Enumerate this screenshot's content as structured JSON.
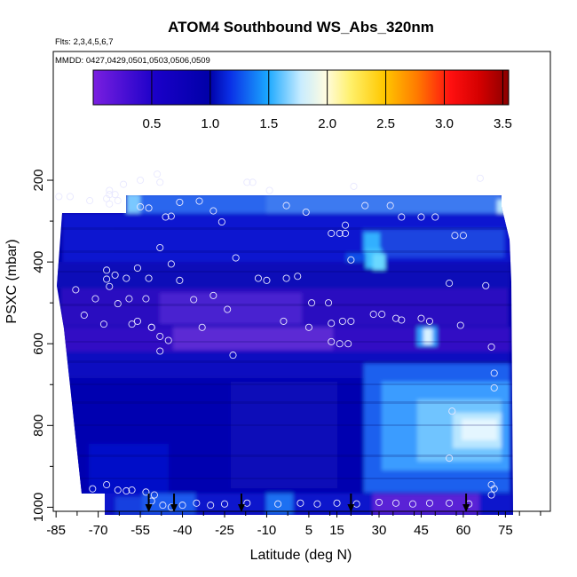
{
  "chart_data": {
    "type": "heatmap",
    "title": "ATOM4 Southbound WS_Abs_320nm",
    "flights_note": "Flts: 2,3,4,5,6,7",
    "dates_note": "MMDD: 0427,0429,0501,0503,0506,0509",
    "xlabel": "Latitude (deg N)",
    "ylabel": "PSXC (mbar)",
    "x_ticks": [
      -85,
      -70,
      -55,
      -40,
      -25,
      -10,
      5,
      15,
      30,
      45,
      60,
      75
    ],
    "x_tick_labels": [
      "-85",
      "-70",
      "-55",
      "-40",
      "-25",
      "-10",
      "5",
      "15",
      "30",
      "45",
      "60",
      "75"
    ],
    "y_ticks": [
      200,
      400,
      600,
      800,
      1000
    ],
    "y_tick_labels": [
      "200",
      "400",
      "600",
      "800",
      "1000"
    ],
    "xlim": [
      -86,
      91
    ],
    "ylim": [
      1010,
      -115
    ],
    "colorbar": {
      "range": [
        0,
        3.55
      ],
      "ticks": [
        0.5,
        1.0,
        1.5,
        2.0,
        2.5,
        3.0,
        3.5
      ],
      "tick_labels": [
        "0.5",
        "1.0",
        "1.5",
        "2.0",
        "2.5",
        "3.0",
        "3.5"
      ],
      "colors": [
        [
          0.0,
          "#7a1fe0"
        ],
        [
          0.15,
          "#1a00c8"
        ],
        [
          0.28,
          "#0000a8"
        ],
        [
          0.33,
          "#0a30e6"
        ],
        [
          0.42,
          "#1aa8ff"
        ],
        [
          0.5,
          "#c8ecff"
        ],
        [
          0.56,
          "#fffce0"
        ],
        [
          0.62,
          "#fff06a"
        ],
        [
          0.7,
          "#ffc800"
        ],
        [
          0.78,
          "#ff7a00"
        ],
        [
          0.86,
          "#ff1010"
        ],
        [
          0.93,
          "#d40000"
        ],
        [
          1.0,
          "#8a0000"
        ]
      ]
    },
    "profile_arrows_lat": [
      -52,
      -43,
      -19,
      20,
      61
    ],
    "observations": [
      {
        "lat": -84,
        "p": 240
      },
      {
        "lat": -80,
        "p": 240
      },
      {
        "lat": -73,
        "p": 250
      },
      {
        "lat": -67,
        "p": 245
      },
      {
        "lat": -66,
        "p": 225
      },
      {
        "lat": -66,
        "p": 235
      },
      {
        "lat": -66,
        "p": 258
      },
      {
        "lat": -64,
        "p": 235
      },
      {
        "lat": -63,
        "p": 250
      },
      {
        "lat": -61,
        "p": 210
      },
      {
        "lat": -55,
        "p": 200
      },
      {
        "lat": -55,
        "p": 265
      },
      {
        "lat": -52,
        "p": 268
      },
      {
        "lat": -48,
        "p": 205
      },
      {
        "lat": -49,
        "p": 185
      },
      {
        "lat": -44,
        "p": 288
      },
      {
        "lat": -46,
        "p": 290
      },
      {
        "lat": -41,
        "p": 254
      },
      {
        "lat": -34,
        "p": 251
      },
      {
        "lat": -29,
        "p": 275
      },
      {
        "lat": -26,
        "p": 302
      },
      {
        "lat": -17,
        "p": 205
      },
      {
        "lat": -15,
        "p": 205
      },
      {
        "lat": -9,
        "p": 225
      },
      {
        "lat": -3,
        "p": 262
      },
      {
        "lat": 4,
        "p": 278
      },
      {
        "lat": 13,
        "p": 330
      },
      {
        "lat": 16,
        "p": 330
      },
      {
        "lat": 18,
        "p": 330
      },
      {
        "lat": 18,
        "p": 310
      },
      {
        "lat": 21,
        "p": 215
      },
      {
        "lat": 25,
        "p": 262
      },
      {
        "lat": 34,
        "p": 262
      },
      {
        "lat": 38,
        "p": 290
      },
      {
        "lat": 45,
        "p": 290
      },
      {
        "lat": 50,
        "p": 290
      },
      {
        "lat": 57,
        "p": 335
      },
      {
        "lat": 60,
        "p": 335
      },
      {
        "lat": 66,
        "p": 195
      },
      {
        "lat": -67,
        "p": 420
      },
      {
        "lat": -67,
        "p": 442
      },
      {
        "lat": -66,
        "p": 460
      },
      {
        "lat": -64,
        "p": 432
      },
      {
        "lat": -60,
        "p": 440
      },
      {
        "lat": -56,
        "p": 415
      },
      {
        "lat": -52,
        "p": 440
      },
      {
        "lat": -53,
        "p": 490
      },
      {
        "lat": -51,
        "p": 560
      },
      {
        "lat": -56,
        "p": 545
      },
      {
        "lat": -48,
        "p": 582
      },
      {
        "lat": -48,
        "p": 365
      },
      {
        "lat": -44,
        "p": 405
      },
      {
        "lat": -41,
        "p": 445
      },
      {
        "lat": -36,
        "p": 492
      },
      {
        "lat": -33,
        "p": 560
      },
      {
        "lat": -29,
        "p": 482
      },
      {
        "lat": -24,
        "p": 516
      },
      {
        "lat": -21,
        "p": 390
      },
      {
        "lat": -13,
        "p": 440
      },
      {
        "lat": -10,
        "p": 445
      },
      {
        "lat": -3,
        "p": 440
      },
      {
        "lat": 1,
        "p": 435
      },
      {
        "lat": 6,
        "p": 500
      },
      {
        "lat": 12,
        "p": 500
      },
      {
        "lat": 20,
        "p": 395
      },
      {
        "lat": -78,
        "p": 468
      },
      {
        "lat": -75,
        "p": 530
      },
      {
        "lat": -71,
        "p": 490
      },
      {
        "lat": -68,
        "p": 552
      },
      {
        "lat": -63,
        "p": 502
      },
      {
        "lat": -59,
        "p": 490
      },
      {
        "lat": -58,
        "p": 552
      },
      {
        "lat": -51,
        "p": 560
      },
      {
        "lat": -45,
        "p": 592
      },
      {
        "lat": -48,
        "p": 618
      },
      {
        "lat": -4,
        "p": 545
      },
      {
        "lat": 5,
        "p": 560
      },
      {
        "lat": 13,
        "p": 550
      },
      {
        "lat": 17,
        "p": 545
      },
      {
        "lat": 20,
        "p": 545
      },
      {
        "lat": 16,
        "p": 600
      },
      {
        "lat": 19,
        "p": 600
      },
      {
        "lat": 13,
        "p": 595
      },
      {
        "lat": 28,
        "p": 528
      },
      {
        "lat": 31,
        "p": 528
      },
      {
        "lat": 36,
        "p": 538
      },
      {
        "lat": 38,
        "p": 542
      },
      {
        "lat": 45,
        "p": 538
      },
      {
        "lat": 48,
        "p": 545
      },
      {
        "lat": 55,
        "p": 452
      },
      {
        "lat": 59,
        "p": 555
      },
      {
        "lat": 68,
        "p": 458
      },
      {
        "lat": 70,
        "p": 608
      },
      {
        "lat": 71,
        "p": 672
      },
      {
        "lat": 71,
        "p": 708
      },
      {
        "lat": -22,
        "p": 628
      },
      {
        "lat": 56,
        "p": 765
      },
      {
        "lat": 55,
        "p": 880
      },
      {
        "lat": 70,
        "p": 945
      },
      {
        "lat": 71,
        "p": 955
      },
      {
        "lat": 70,
        "p": 970
      },
      {
        "lat": -72,
        "p": 955
      },
      {
        "lat": -67,
        "p": 945
      },
      {
        "lat": -63,
        "p": 958
      },
      {
        "lat": -60,
        "p": 960
      },
      {
        "lat": -58,
        "p": 958
      },
      {
        "lat": -53,
        "p": 963
      },
      {
        "lat": -50,
        "p": 970
      },
      {
        "lat": -51,
        "p": 985
      },
      {
        "lat": -47,
        "p": 995
      },
      {
        "lat": -44,
        "p": 1000
      },
      {
        "lat": -40,
        "p": 995
      },
      {
        "lat": -35,
        "p": 990
      },
      {
        "lat": -30,
        "p": 995
      },
      {
        "lat": -25,
        "p": 992
      },
      {
        "lat": -17,
        "p": 990
      },
      {
        "lat": -6,
        "p": 992
      },
      {
        "lat": 2,
        "p": 990
      },
      {
        "lat": 8,
        "p": 992
      },
      {
        "lat": 15,
        "p": 990
      },
      {
        "lat": 22,
        "p": 992
      },
      {
        "lat": 30,
        "p": 988
      },
      {
        "lat": 36,
        "p": 990
      },
      {
        "lat": 42,
        "p": 992
      },
      {
        "lat": 48,
        "p": 990
      },
      {
        "lat": 55,
        "p": 990
      },
      {
        "lat": 62,
        "p": 992
      }
    ]
  }
}
